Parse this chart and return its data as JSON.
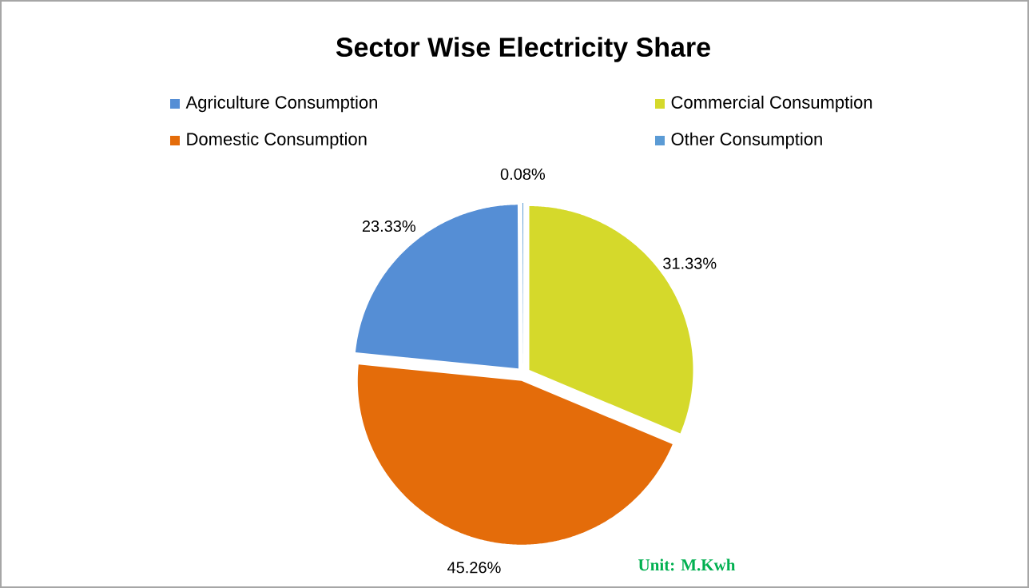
{
  "chart_data": {
    "type": "pie",
    "title": "Sector Wise Electricity Share",
    "categories": [
      "Agriculture Consumption",
      "Domestic Consumption",
      "Commercial Consumption",
      "Other Consumption"
    ],
    "values": [
      23.33,
      45.26,
      31.33,
      0.08
    ],
    "value_labels": [
      "23.33%",
      "45.26%",
      "31.33%",
      "0.08%"
    ],
    "colors": [
      "#558ed5",
      "#e46c0a",
      "#d5d92b",
      "#5b9bd5"
    ],
    "legend": "top",
    "annotations": [
      "Unit:  M.Kwh"
    ]
  }
}
